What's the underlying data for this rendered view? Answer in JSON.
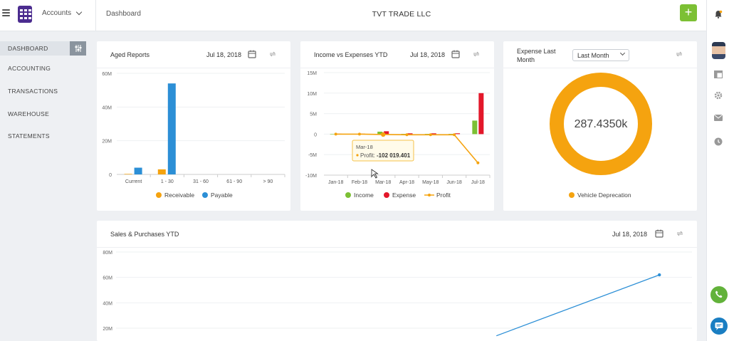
{
  "app": {
    "switcher_label": "Accounts",
    "breadcrumb": "Dashboard",
    "company": "TVT TRADE LLC",
    "add_label": "+"
  },
  "sidebar": {
    "items": [
      {
        "label": "DASHBOARD"
      },
      {
        "label": "ACCOUNTING"
      },
      {
        "label": "TRANSACTIONS"
      },
      {
        "label": "WAREHOUSE"
      },
      {
        "label": "STATEMENTS"
      }
    ]
  },
  "cards": {
    "aged": {
      "title": "Aged Reports",
      "date": "Jul 18, 2018",
      "legend": [
        "Receivable",
        "Payable"
      ]
    },
    "income": {
      "title": "Income vs Expenses YTD",
      "date": "Jul 18, 2018",
      "legend": [
        "Income",
        "Expense",
        "Profit"
      ],
      "tooltip": {
        "month": "Mar-18",
        "label": "Profit:",
        "value": "-102 019.401"
      }
    },
    "expense": {
      "title": "Expense Last Month",
      "select": "Last Month",
      "center_value": "287.4350k",
      "legend": [
        "Vehicle Deprecation"
      ]
    },
    "sales": {
      "title": "Sales & Purchases YTD",
      "date": "Jul 18, 2018"
    }
  },
  "colors": {
    "orange": "#f5a30f",
    "blue": "#2c8fd6",
    "green": "#7cc034",
    "red": "#e3172a",
    "line": "#2c8fd6"
  },
  "chart_data": [
    {
      "type": "bar",
      "categories": [
        "Current",
        "1 - 30",
        "31 - 60",
        "61 - 90",
        "> 90"
      ],
      "series": [
        {
          "name": "Receivable",
          "values": [
            0.3,
            3,
            0,
            0,
            0
          ]
        },
        {
          "name": "Payable",
          "values": [
            4,
            54,
            0,
            0,
            0
          ]
        }
      ],
      "ylim": [
        0,
        60
      ],
      "yticks": [
        "0",
        "20M",
        "40M",
        "60M"
      ]
    },
    {
      "type": "bar+line",
      "categories": [
        "Jan-18",
        "Feb-18",
        "Mar-18",
        "Apr-18",
        "May-18",
        "Jun-18",
        "Jul-18"
      ],
      "series": [
        {
          "name": "Income",
          "values": [
            0.05,
            0.05,
            0.6,
            0.05,
            0.05,
            0.05,
            3.3
          ]
        },
        {
          "name": "Expense",
          "values": [
            0.1,
            0.1,
            0.7,
            0.2,
            0.2,
            0.2,
            10
          ]
        },
        {
          "name": "Profit",
          "values": [
            0.0,
            0.0,
            -0.1,
            -0.15,
            -0.15,
            -0.15,
            -7
          ]
        }
      ],
      "ylim": [
        -10,
        15
      ],
      "yticks": [
        "-10M",
        "-5M",
        "0",
        "5M",
        "10M",
        "15M"
      ]
    },
    {
      "type": "pie",
      "slices": [
        {
          "name": "Vehicle Deprecation",
          "value": 287.435
        }
      ]
    },
    {
      "type": "line",
      "series": [
        {
          "name": "Sales",
          "points": [
            [
              0.7,
              14
            ],
            [
              1.0,
              62
            ]
          ]
        }
      ],
      "ylim": [
        20,
        80
      ],
      "yticks": [
        "20M",
        "40M",
        "60M",
        "80M"
      ]
    }
  ]
}
